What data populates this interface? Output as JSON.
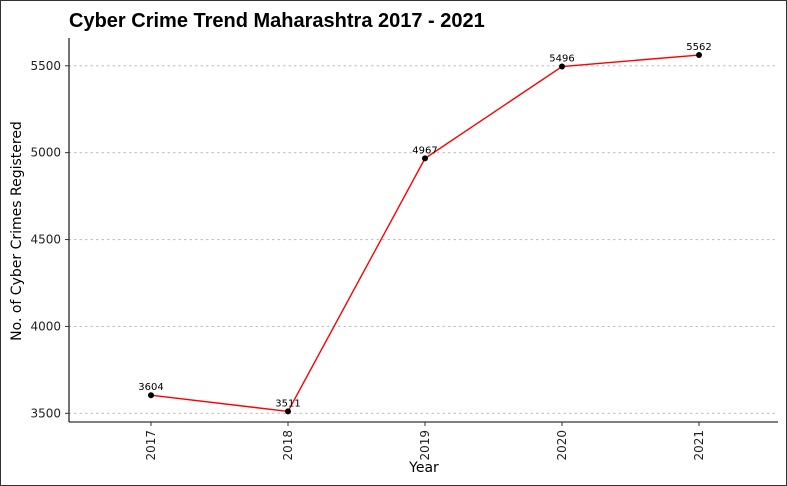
{
  "chart_data": {
    "type": "line",
    "title": "Cyber Crime Trend Maharashtra 2017 - 2021",
    "xlabel": "Year",
    "ylabel": "No. of Cyber Crimes Registered",
    "categories": [
      "2017",
      "2018",
      "2019",
      "2020",
      "2021"
    ],
    "values": [
      3604,
      3511,
      4967,
      5496,
      5562
    ],
    "data_labels": [
      "3604",
      "3511",
      "4967",
      "5496",
      "5562"
    ],
    "yticks": [
      3500,
      4000,
      4500,
      5000,
      5500
    ],
    "ytick_labels": [
      "3500",
      "4000",
      "4500",
      "5000",
      "5500"
    ],
    "ylim": [
      3450,
      5660
    ],
    "grid": "horizontal-dotted",
    "line_color": "#ff0000",
    "point_color": "#000000"
  }
}
